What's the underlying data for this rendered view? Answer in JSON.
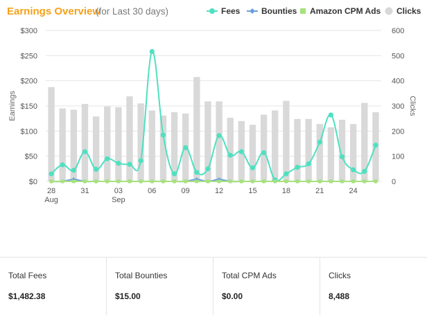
{
  "header": {
    "title": "Earnings Overview",
    "subtitle": "(for Last 30 days)"
  },
  "legend": [
    {
      "label": "Fees",
      "color": "#4fe0c0",
      "marker": "line-dot"
    },
    {
      "label": "Bounties",
      "color": "#6a9fde",
      "marker": "line-diamond"
    },
    {
      "label": "Amazon CPM Ads",
      "color": "#a6e27c",
      "marker": "square"
    },
    {
      "label": "Clicks",
      "color": "#d8d8d8",
      "marker": "circle"
    }
  ],
  "chart_data": {
    "type": "bar+line",
    "y_left": {
      "label": "Earnings",
      "min": 0,
      "max": 300,
      "ticks": [
        "$0",
        "$50",
        "$100",
        "$150",
        "$200",
        "$250",
        "$300"
      ]
    },
    "y_right": {
      "label": "Clicks",
      "min": 0,
      "max": 600,
      "ticks": [
        "0",
        "100",
        "200",
        "300",
        "400",
        "500",
        "600"
      ]
    },
    "x_labels": [
      {
        "index": 0,
        "day": "28",
        "month": "Aug"
      },
      {
        "index": 3,
        "day": "31",
        "month": ""
      },
      {
        "index": 6,
        "day": "03",
        "month": "Sep"
      },
      {
        "index": 9,
        "day": "06",
        "month": ""
      },
      {
        "index": 12,
        "day": "09",
        "month": ""
      },
      {
        "index": 15,
        "day": "12",
        "month": ""
      },
      {
        "index": 18,
        "day": "15",
        "month": ""
      },
      {
        "index": 21,
        "day": "18",
        "month": ""
      },
      {
        "index": 24,
        "day": "21",
        "month": ""
      },
      {
        "index": 27,
        "day": "24",
        "month": ""
      }
    ],
    "grid": true,
    "series": [
      {
        "name": "Clicks",
        "type": "bar",
        "axis": "right",
        "color": "#d9d9d9",
        "values": [
          375,
          290,
          285,
          308,
          258,
          298,
          295,
          338,
          310,
          282,
          262,
          275,
          270,
          415,
          318,
          318,
          253,
          240,
          225,
          265,
          282,
          320,
          248,
          248,
          228,
          215,
          245,
          228,
          312,
          275
        ]
      },
      {
        "name": "Fees",
        "type": "line",
        "axis": "left",
        "color": "#4fe0c0",
        "values": [
          15,
          33,
          22,
          59,
          24,
          45,
          36,
          34,
          41,
          258,
          92,
          15,
          67,
          18,
          25,
          91,
          52,
          59,
          27,
          57,
          3,
          15,
          28,
          35,
          78,
          132,
          49,
          23,
          20,
          72
        ]
      },
      {
        "name": "Bounties",
        "type": "line",
        "axis": "left",
        "color": "#6a9fde",
        "values": [
          0,
          0,
          4,
          0,
          0,
          0,
          0,
          0,
          0,
          0,
          0,
          0,
          0,
          4,
          0,
          4,
          0,
          0,
          0,
          0,
          0,
          0,
          0,
          0,
          0,
          0,
          0,
          0,
          0,
          0
        ]
      },
      {
        "name": "Amazon CPM Ads",
        "type": "line",
        "axis": "left",
        "color": "#a6e27c",
        "values": [
          0,
          0,
          0,
          0,
          0,
          0,
          0,
          0,
          0,
          0,
          0,
          0,
          0,
          0,
          0,
          0,
          0,
          0,
          0,
          0,
          0,
          0,
          0,
          0,
          0,
          0,
          0,
          0,
          0,
          0
        ]
      }
    ]
  },
  "stats": [
    {
      "label": "Total Fees",
      "value": "$1,482.38"
    },
    {
      "label": "Total Bounties",
      "value": "$15.00"
    },
    {
      "label": "Total CPM Ads",
      "value": "$0.00"
    },
    {
      "label": "Clicks",
      "value": "8,488"
    }
  ]
}
